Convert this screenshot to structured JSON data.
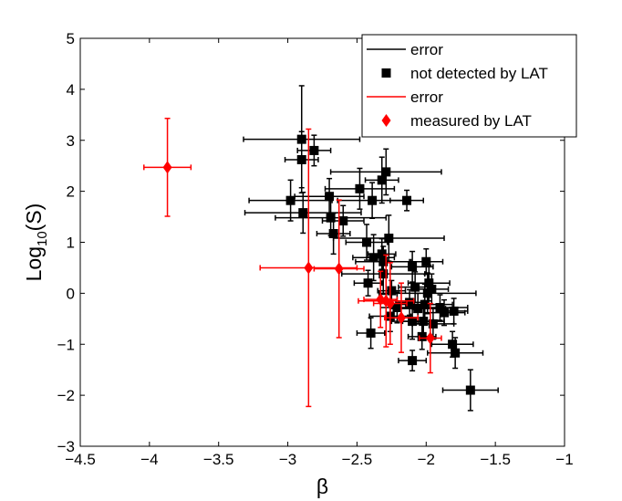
{
  "chart_data": {
    "type": "scatter",
    "title": "",
    "xlabel": "β",
    "ylabel_main": "Log",
    "ylabel_sub": "10",
    "ylabel_tail": "(S)",
    "xlim": [
      -4.5,
      -1
    ],
    "ylim": [
      -3,
      5
    ],
    "xticks": [
      -4.5,
      -4,
      -3.5,
      -3,
      -2.5,
      -2,
      -1.5,
      -1
    ],
    "xtick_labels": [
      "−4.5",
      "−4",
      "−3.5",
      "−3",
      "−2.5",
      "−2",
      "−1.5",
      "−1"
    ],
    "yticks": [
      -3,
      -2,
      -1,
      0,
      1,
      2,
      3,
      4,
      5
    ],
    "ytick_labels": [
      "−3",
      "−2",
      "−1",
      "0",
      "1",
      "2",
      "3",
      "4",
      "5"
    ],
    "grid": false,
    "legend": {
      "placement": "top-right",
      "entries": [
        {
          "label": "error",
          "kind": "line",
          "color": "#000000"
        },
        {
          "label": "not detected by LAT",
          "kind": "square",
          "color": "#000000"
        },
        {
          "label": "error",
          "kind": "line",
          "color": "#ff0000"
        },
        {
          "label": "measured by LAT",
          "kind": "diamond",
          "color": "#ff0000"
        }
      ]
    },
    "series": [
      {
        "name": "not detected by LAT",
        "marker": "square",
        "color": "#000000",
        "points": [
          {
            "x": -2.9,
            "y": 3.02,
            "xerr": 0.42,
            "yerr": 1.05
          },
          {
            "x": -2.9,
            "y": 2.62,
            "xerr": 0.12,
            "yerr": 0.55
          },
          {
            "x": -2.81,
            "y": 2.8,
            "xerr": 0.12,
            "yerr": 0.3
          },
          {
            "x": -2.98,
            "y": 1.82,
            "xerr": 0.3,
            "yerr": 0.4
          },
          {
            "x": -2.89,
            "y": 1.58,
            "xerr": 0.42,
            "yerr": 0.4
          },
          {
            "x": -2.7,
            "y": 1.9,
            "xerr": 0.25,
            "yerr": 0.35
          },
          {
            "x": -2.69,
            "y": 1.48,
            "xerr": 0.4,
            "yerr": 0.35
          },
          {
            "x": -2.67,
            "y": 1.17,
            "xerr": 0.12,
            "yerr": 0.4
          },
          {
            "x": -2.6,
            "y": 1.42,
            "xerr": 0.15,
            "yerr": 0.3
          },
          {
            "x": -2.48,
            "y": 2.05,
            "xerr": 0.25,
            "yerr": 0.4
          },
          {
            "x": -2.39,
            "y": 1.82,
            "xerr": 0.25,
            "yerr": 0.35
          },
          {
            "x": -2.32,
            "y": 2.22,
            "xerr": 0.12,
            "yerr": 0.45
          },
          {
            "x": -2.29,
            "y": 2.38,
            "xerr": 0.4,
            "yerr": 0.45
          },
          {
            "x": -2.14,
            "y": 1.82,
            "xerr": 0.12,
            "yerr": 0.2
          },
          {
            "x": -2.43,
            "y": 1.0,
            "xerr": 0.15,
            "yerr": 0.35
          },
          {
            "x": -2.38,
            "y": 0.7,
            "xerr": 0.15,
            "yerr": 0.45
          },
          {
            "x": -2.32,
            "y": 0.77,
            "xerr": 0.1,
            "yerr": 0.3
          },
          {
            "x": -2.27,
            "y": 1.08,
            "xerr": 0.4,
            "yerr": 0.45
          },
          {
            "x": -2.42,
            "y": 0.2,
            "xerr": 0.1,
            "yerr": 0.25
          },
          {
            "x": -2.31,
            "y": 0.62,
            "xerr": 0.2,
            "yerr": 0.3
          },
          {
            "x": -2.31,
            "y": 0.38,
            "xerr": 0.3,
            "yerr": 0.4
          },
          {
            "x": -2.25,
            "y": 0.05,
            "xerr": 0.1,
            "yerr": 0.2
          },
          {
            "x": -2.21,
            "y": -0.28,
            "xerr": 0.12,
            "yerr": 0.3
          },
          {
            "x": -2.4,
            "y": -0.78,
            "xerr": 0.1,
            "yerr": 0.3
          },
          {
            "x": -2.12,
            "y": -0.18,
            "xerr": 0.1,
            "yerr": 0.25
          },
          {
            "x": -2.1,
            "y": 0.52,
            "xerr": 0.15,
            "yerr": 0.3
          },
          {
            "x": -2.08,
            "y": 0.12,
            "xerr": 0.12,
            "yerr": 0.3
          },
          {
            "x": -2.06,
            "y": -0.3,
            "xerr": 0.2,
            "yerr": 0.3
          },
          {
            "x": -2.0,
            "y": 0.62,
            "xerr": 0.12,
            "yerr": 0.25
          },
          {
            "x": -1.98,
            "y": 0.2,
            "xerr": 0.15,
            "yerr": 0.35
          },
          {
            "x": -1.96,
            "y": 0.08,
            "xerr": 0.12,
            "yerr": 0.3
          },
          {
            "x": -2.01,
            "y": -0.22,
            "xerr": 0.2,
            "yerr": 0.4
          },
          {
            "x": -2.02,
            "y": -0.55,
            "xerr": 0.15,
            "yerr": 0.3
          },
          {
            "x": -2.03,
            "y": -0.85,
            "xerr": 0.1,
            "yerr": 0.25
          },
          {
            "x": -2.1,
            "y": -0.55,
            "xerr": 0.15,
            "yerr": 0.35
          },
          {
            "x": -2.1,
            "y": -1.32,
            "xerr": 0.1,
            "yerr": 0.2
          },
          {
            "x": -1.95,
            "y": -0.6,
            "xerr": 0.15,
            "yerr": 0.3
          },
          {
            "x": -1.9,
            "y": -0.28,
            "xerr": 0.2,
            "yerr": 0.25
          },
          {
            "x": -1.87,
            "y": -0.38,
            "xerr": 0.15,
            "yerr": 0.25
          },
          {
            "x": -1.8,
            "y": -0.35,
            "xerr": 0.1,
            "yerr": 0.25
          },
          {
            "x": -1.81,
            "y": -1.0,
            "xerr": 0.15,
            "yerr": 0.25
          },
          {
            "x": -1.79,
            "y": -1.17,
            "xerr": 0.2,
            "yerr": 0.3
          },
          {
            "x": -1.68,
            "y": -1.9,
            "xerr": 0.2,
            "yerr": 0.4
          },
          {
            "x": -1.99,
            "y": 0.0,
            "xerr": 0.35,
            "yerr": 0.4
          },
          {
            "x": -2.26,
            "y": -0.45,
            "xerr": 0.15,
            "yerr": 0.3
          }
        ]
      },
      {
        "name": "measured by LAT",
        "marker": "diamond",
        "color": "#ff0000",
        "points": [
          {
            "x": -3.87,
            "y": 2.47,
            "xerr": 0.17,
            "yerr": 0.96
          },
          {
            "x": -2.85,
            "y": 0.5,
            "xerr": 0.35,
            "yerr": 2.72
          },
          {
            "x": -2.63,
            "y": 0.48,
            "xerr": 0.18,
            "yerr": 1.35
          },
          {
            "x": -2.33,
            "y": -0.12,
            "xerr": 0.12,
            "yerr": 0.55
          },
          {
            "x": -2.29,
            "y": -0.15,
            "xerr": 0.2,
            "yerr": 0.9
          },
          {
            "x": -2.26,
            "y": -0.2,
            "xerr": 0.12,
            "yerr": 0.8
          },
          {
            "x": -2.18,
            "y": -0.48,
            "xerr": 0.12,
            "yerr": 0.68
          },
          {
            "x": -1.97,
            "y": -0.88,
            "xerr": 0.08,
            "yerr": 0.68
          }
        ]
      }
    ]
  }
}
